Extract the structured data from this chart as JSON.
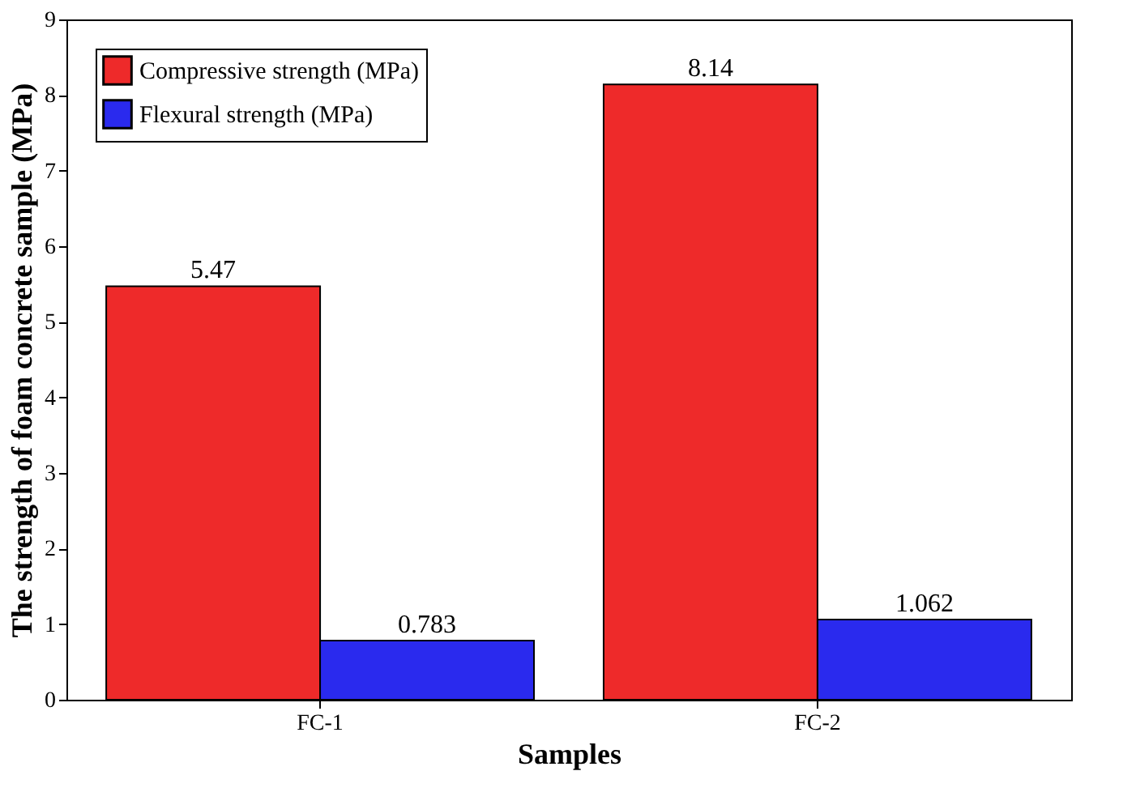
{
  "chart_data": {
    "type": "bar",
    "xlabel": "Samples",
    "ylabel": "The strength of foam concrete sample (MPa)",
    "categories": [
      "FC-1",
      "FC-2"
    ],
    "series": [
      {
        "name": "Compressive strength (MPa)",
        "color": "#ee2a2a",
        "values": [
          5.47,
          8.14
        ]
      },
      {
        "name": "Flexural strength (MPa)",
        "color": "#2a2aee",
        "values": [
          0.783,
          1.062
        ]
      }
    ],
    "ylim": [
      0,
      9
    ],
    "yticks": [
      0,
      1,
      2,
      3,
      4,
      5,
      6,
      7,
      8,
      9
    ],
    "data_labels": true,
    "legend": "top left",
    "grid": false
  }
}
